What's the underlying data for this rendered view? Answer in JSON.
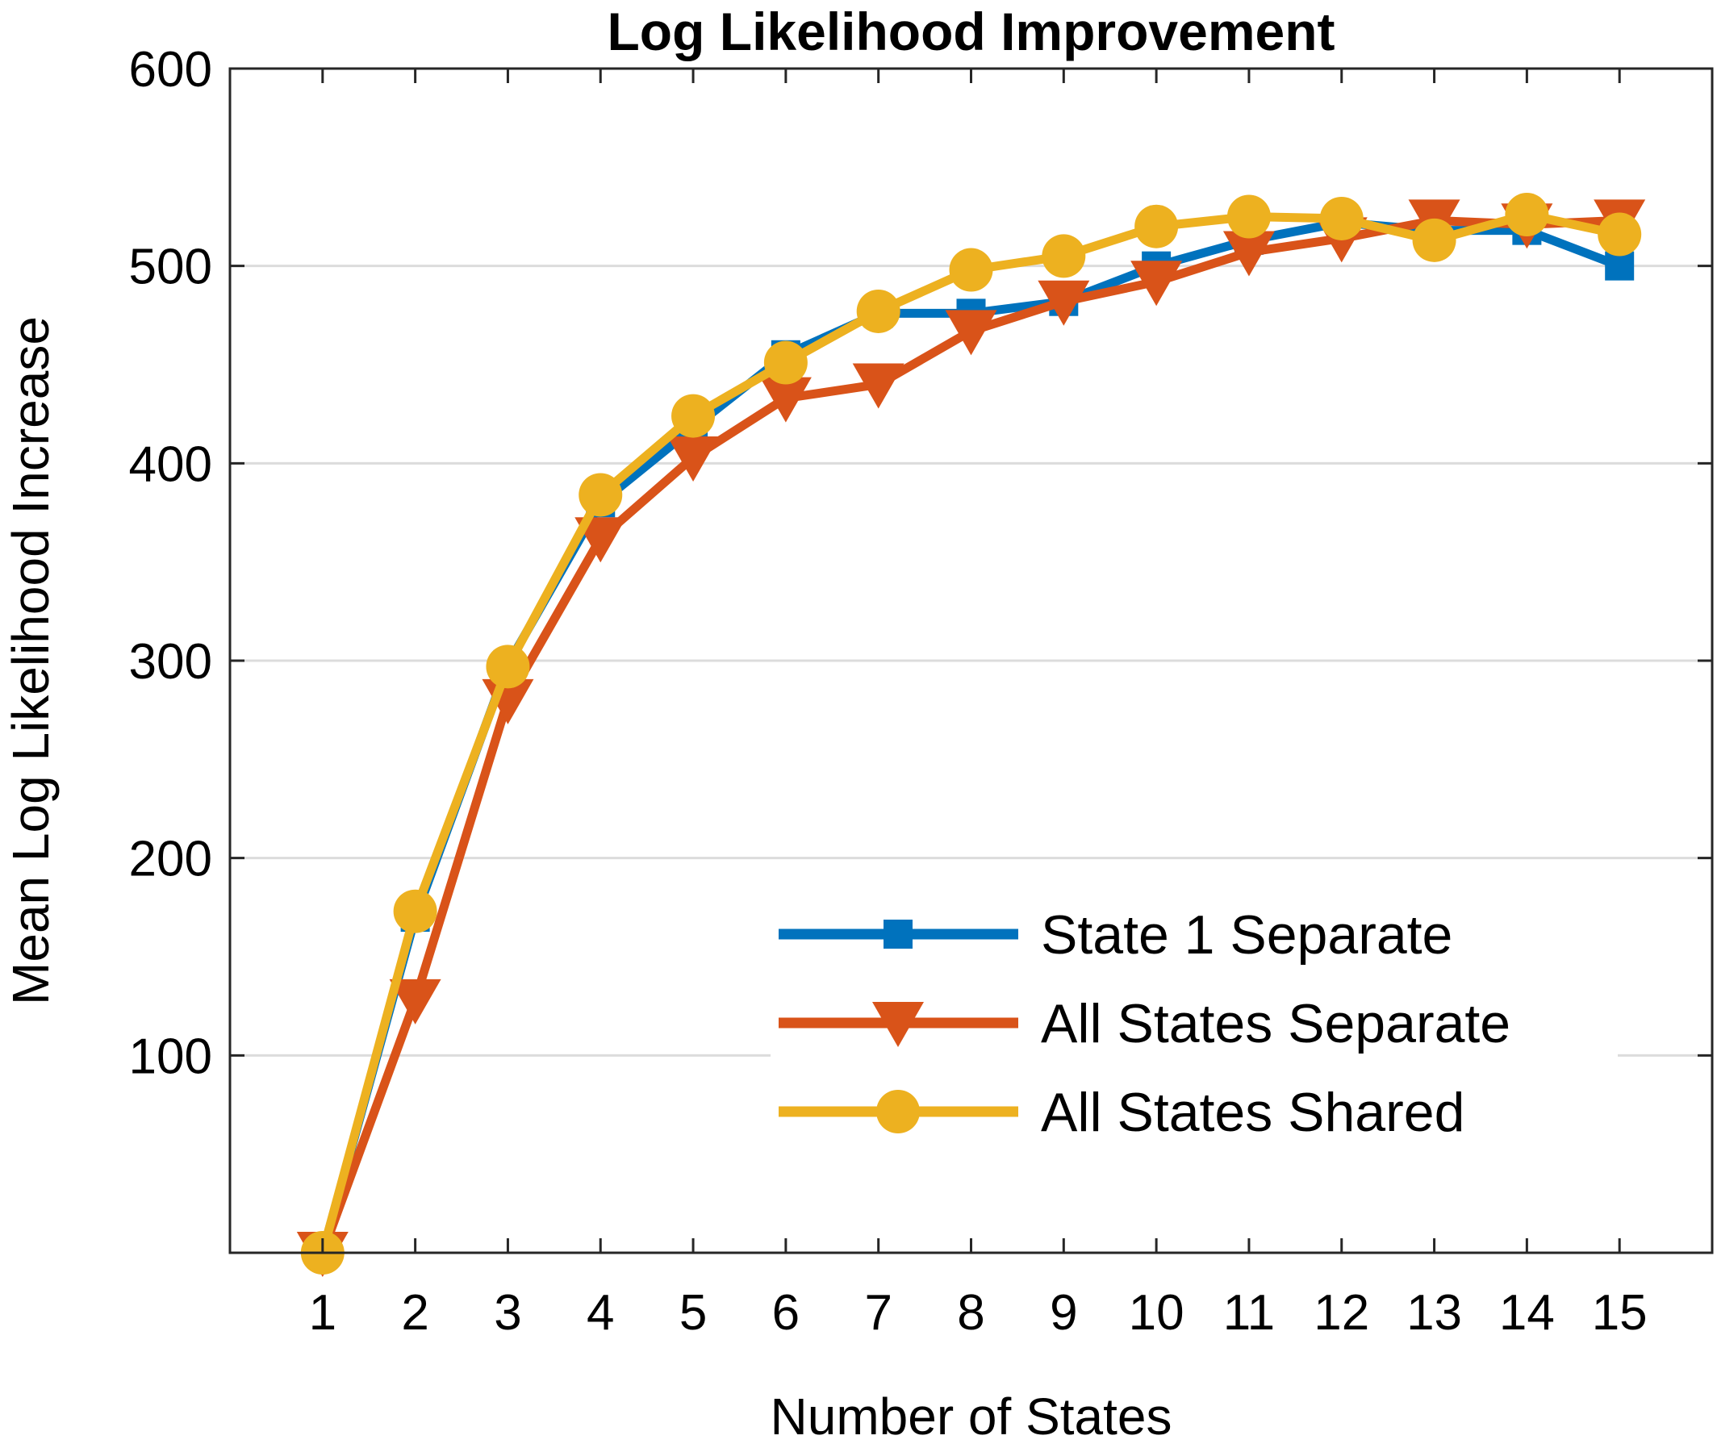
{
  "chart_data": {
    "type": "line",
    "title": "Log Likelihood Improvement",
    "xlabel": "Number of States",
    "ylabel": "Mean Log Likelihood Increase",
    "x": [
      1,
      2,
      3,
      4,
      5,
      6,
      7,
      8,
      9,
      10,
      11,
      12,
      13,
      14,
      15
    ],
    "xlim": [
      0,
      16
    ],
    "ylim": [
      0,
      600
    ],
    "yticks": [
      100,
      200,
      300,
      400,
      500,
      600
    ],
    "grid": "horizontal",
    "legend_position": "bottom-right",
    "series": [
      {
        "name": "State 1 Separate",
        "color": "#0072BD",
        "marker": "square",
        "values": [
          0,
          170,
          298,
          380,
          418,
          455,
          476,
          476,
          482,
          500,
          513,
          522,
          518,
          518,
          500
        ]
      },
      {
        "name": "All States Separate",
        "color": "#D95319",
        "marker": "triangle-down",
        "values": [
          0,
          128,
          280,
          362,
          403,
          433,
          440,
          467,
          482,
          492,
          507,
          514,
          523,
          521,
          523
        ]
      },
      {
        "name": "All States Shared",
        "color": "#EDB120",
        "marker": "circle",
        "values": [
          0,
          173,
          297,
          384,
          424,
          451,
          477,
          498,
          505,
          520,
          525,
          524,
          513,
          526,
          516
        ]
      }
    ]
  }
}
